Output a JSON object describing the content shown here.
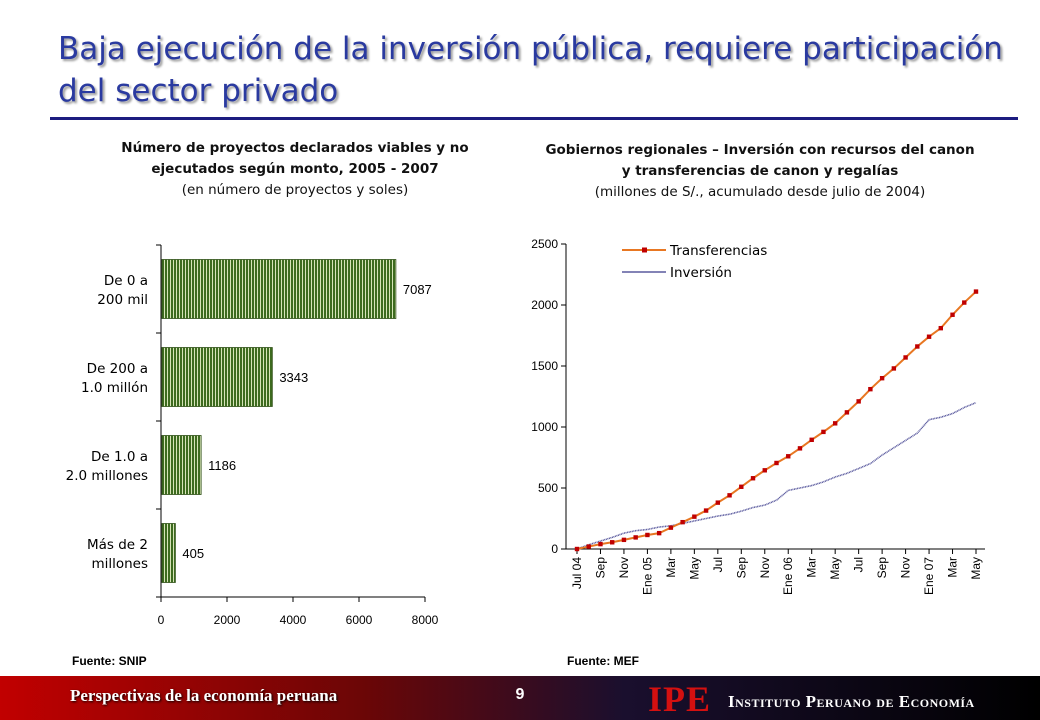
{
  "slide": {
    "title": "Baja ejecución de la inversión pública, requiere participación del sector privado",
    "footer_left": "Perspectivas de la economía peruana",
    "page_number": "9",
    "logo_text": "IPE",
    "institute_name": "Instituto Peruano de Economía"
  },
  "left_chart": {
    "heading_bold": "Número de proyectos declarados viables y no ejecutados según monto, 2005 - 2007",
    "heading_sub": "(en número de proyectos y soles)",
    "source": "Fuente: SNIP"
  },
  "right_chart": {
    "heading_bold": "Gobiernos regionales – Inversión con recursos del canon y transferencias de canon y regalías",
    "heading_sub": "(millones de S/., acumulado desde julio de 2004)",
    "source": "Fuente: MEF"
  },
  "chart_data": [
    {
      "type": "bar",
      "orientation": "horizontal",
      "categories": [
        "De 0 a 200 mil",
        "De 200 a 1.0 millón",
        "De 1.0 a 2.0 millones",
        "Más de 2 millones"
      ],
      "values": [
        7087,
        3343,
        1186,
        405
      ],
      "data_labels": [
        "7087",
        "3343",
        "1186",
        "405"
      ],
      "xlim": [
        0,
        8000
      ],
      "xticks": [
        "0",
        "2000",
        "4000",
        "6000",
        "8000"
      ],
      "bar_color": "#3d6b1f",
      "grid": false
    },
    {
      "type": "line",
      "ylim": [
        0,
        2500
      ],
      "yticks": [
        "0",
        "500",
        "1000",
        "1500",
        "2000",
        "2500"
      ],
      "xticks": [
        "Jul 04",
        "Sep",
        "Nov",
        "Ene 05",
        "Mar",
        "May",
        "Jul",
        "Sep",
        "Nov",
        "Ene 06",
        "Mar",
        "May",
        "Jul",
        "Sep",
        "Nov",
        "Ene 07",
        "Mar",
        "May"
      ],
      "legend_position": "top-left",
      "grid": false,
      "series": [
        {
          "name": "Transferencias",
          "color": "#e87722",
          "marker_color": "#c00000",
          "values": [
            0,
            20,
            40,
            55,
            75,
            95,
            115,
            130,
            175,
            220,
            265,
            315,
            380,
            440,
            510,
            580,
            645,
            705,
            760,
            825,
            895,
            960,
            1030,
            1120,
            1210,
            1310,
            1400,
            1480,
            1570,
            1660,
            1740,
            1810,
            1920,
            2020,
            2110
          ]
        },
        {
          "name": "Inversión",
          "color": "#5a5a9e",
          "values": [
            0,
            35,
            65,
            95,
            130,
            150,
            160,
            180,
            190,
            210,
            230,
            250,
            270,
            285,
            310,
            340,
            360,
            400,
            480,
            500,
            520,
            550,
            590,
            620,
            660,
            700,
            770,
            830,
            890,
            950,
            1060,
            1080,
            1110,
            1160,
            1200
          ]
        }
      ]
    }
  ]
}
